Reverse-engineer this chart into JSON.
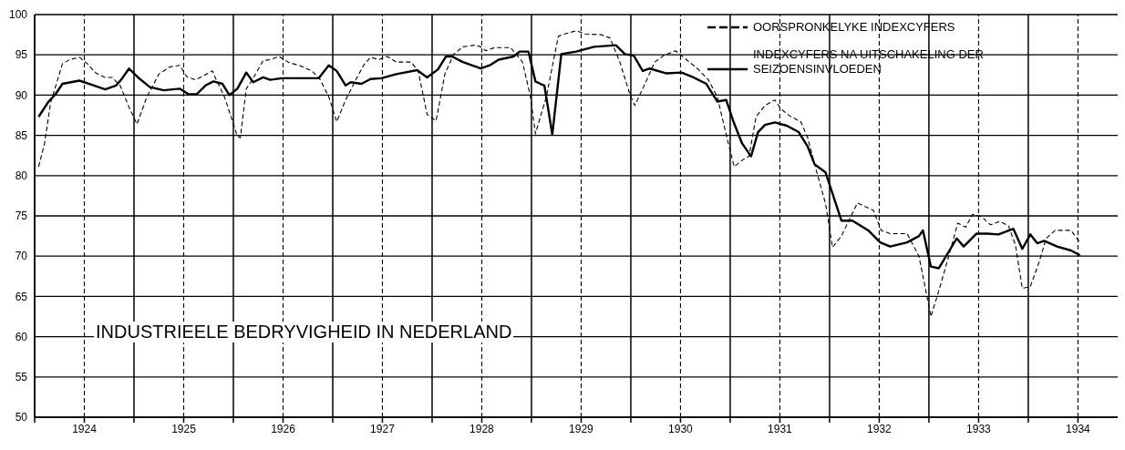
{
  "chart_data": {
    "type": "line",
    "title": "INDUSTRIEELE BEDRYVIGHEID IN NEDERLAND",
    "xlim": [
      1923.5,
      1934.4
    ],
    "xticks": [
      {
        "value": 1923.5,
        "label": null
      },
      {
        "value": 1924,
        "label": "1924"
      },
      {
        "value": 1924.5,
        "label": null
      },
      {
        "value": 1925,
        "label": "1925"
      },
      {
        "value": 1925.5,
        "label": null
      },
      {
        "value": 1926,
        "label": "1926"
      },
      {
        "value": 1926.5,
        "label": null
      },
      {
        "value": 1927,
        "label": "1927"
      },
      {
        "value": 1927.5,
        "label": null
      },
      {
        "value": 1928,
        "label": "1928"
      },
      {
        "value": 1928.5,
        "label": null
      },
      {
        "value": 1929,
        "label": "1929"
      },
      {
        "value": 1929.5,
        "label": null
      },
      {
        "value": 1930,
        "label": "1930"
      },
      {
        "value": 1930.5,
        "label": null
      },
      {
        "value": 1931,
        "label": "1931"
      },
      {
        "value": 1931.5,
        "label": null
      },
      {
        "value": 1932,
        "label": "1932"
      },
      {
        "value": 1932.5,
        "label": null
      },
      {
        "value": 1933,
        "label": "1933"
      },
      {
        "value": 1933.5,
        "label": null
      },
      {
        "value": 1934,
        "label": "1934"
      }
    ],
    "ylim": [
      50,
      100
    ],
    "yticks": [
      50,
      55,
      60,
      65,
      70,
      75,
      80,
      85,
      90,
      95,
      100
    ],
    "grid": true,
    "legend": "top right",
    "marker": "none",
    "series": [
      {
        "name": "OORSPRONKELYKE INDEXCYFERS",
        "color": "#000000",
        "line_style": "dashed",
        "x": [
          1923.54,
          1923.6,
          1923.66,
          1923.78,
          1923.85,
          1923.95,
          1924.03,
          1924.12,
          1924.21,
          1924.28,
          1924.36,
          1924.45,
          1924.53,
          1924.63,
          1924.75,
          1924.86,
          1924.96,
          1925.03,
          1925.12,
          1925.29,
          1925.32,
          1925.41,
          1925.45,
          1925.54,
          1925.57,
          1925.63,
          1925.69,
          1925.8,
          1925.87,
          1925.96,
          1926.05,
          1926.18,
          1926.29,
          1926.37,
          1926.46,
          1926.54,
          1926.63,
          1926.72,
          1926.81,
          1926.88,
          1926.96,
          1927.05,
          1927.14,
          1927.29,
          1927.36,
          1927.45,
          1927.54,
          1927.63,
          1927.72,
          1927.81,
          1927.93,
          1927.99,
          1928.04,
          1928.13,
          1928.29,
          1928.41,
          1928.49,
          1928.54,
          1928.65,
          1928.77,
          1928.81,
          1928.95,
          1929.04,
          1929.2,
          1929.29,
          1929.39,
          1929.49,
          1929.54,
          1929.65,
          1929.74,
          1929.83,
          1929.95,
          1930.04,
          1930.17,
          1930.28,
          1930.37,
          1930.46,
          1930.54,
          1930.63,
          1930.69,
          1930.76,
          1930.85,
          1930.95,
          1931.01,
          1931.1,
          1931.21,
          1931.28,
          1931.35,
          1931.46,
          1931.53,
          1931.62,
          1931.69,
          1931.78,
          1931.94,
          1932.02,
          1932.11,
          1932.28,
          1932.4,
          1932.52,
          1932.6,
          1932.7,
          1932.79,
          1932.87,
          1932.94,
          1933.03,
          1933.12,
          1933.21,
          1933.3,
          1933.37,
          1933.44,
          1933.52,
          1933.61,
          1933.68,
          1933.77,
          1933.93,
          1934.02
        ],
        "values": [
          81.1,
          84.0,
          89.0,
          93.9,
          94.4,
          94.7,
          93.9,
          92.7,
          92.2,
          92.2,
          91.2,
          88.5,
          86.4,
          89.8,
          92.6,
          93.5,
          93.7,
          92.3,
          91.9,
          93.0,
          92.1,
          89.8,
          88.3,
          84.9,
          84.7,
          90.8,
          91.9,
          94.3,
          94.4,
          94.8,
          94.1,
          93.6,
          93.0,
          92.0,
          89.8,
          86.7,
          89.4,
          91.6,
          93.7,
          94.7,
          94.4,
          94.8,
          94.1,
          94.1,
          93.0,
          87.6,
          86.8,
          92.7,
          95.1,
          96.0,
          96.2,
          96.0,
          95.5,
          95.9,
          95.9,
          94.1,
          89.8,
          85.2,
          89.8,
          97.3,
          97.5,
          98.0,
          97.6,
          97.5,
          97.1,
          94.1,
          90.1,
          88.7,
          91.6,
          94.1,
          94.9,
          95.5,
          94.6,
          93.3,
          91.9,
          89.8,
          85.1,
          81.1,
          82.0,
          82.4,
          87.3,
          88.7,
          89.4,
          88.3,
          87.4,
          86.7,
          84.7,
          81.4,
          76.5,
          71.1,
          72.5,
          74.3,
          76.6,
          75.7,
          73.2,
          72.8,
          72.8,
          70.0,
          62.5,
          65.7,
          70.0,
          74.1,
          73.6,
          75.2,
          74.9,
          73.9,
          74.3,
          73.8,
          71.4,
          66.0,
          66.2,
          69.3,
          72.2,
          73.2,
          73.2,
          71.7
        ]
      },
      {
        "name": "INDEXCYFERS NA UITSCHAKELING DER SEIZOENSINVLOEDEN",
        "color": "#000000",
        "line_style": "solid",
        "x": [
          1923.54,
          1923.64,
          1923.71,
          1923.78,
          1923.95,
          1924.05,
          1924.21,
          1924.32,
          1924.37,
          1924.45,
          1924.54,
          1924.66,
          1924.8,
          1924.96,
          1925.05,
          1925.13,
          1925.22,
          1925.3,
          1925.39,
          1925.46,
          1925.54,
          1925.63,
          1925.7,
          1925.8,
          1925.87,
          1925.99,
          1926.23,
          1926.36,
          1926.46,
          1926.54,
          1926.63,
          1926.68,
          1926.79,
          1926.88,
          1926.99,
          1927.14,
          1927.35,
          1927.45,
          1927.56,
          1927.64,
          1927.7,
          1927.81,
          1927.99,
          1928.08,
          1928.17,
          1928.32,
          1928.38,
          1928.47,
          1928.54,
          1928.59,
          1928.63,
          1928.71,
          1928.8,
          1928.95,
          1929.13,
          1929.35,
          1929.44,
          1929.53,
          1929.62,
          1929.69,
          1929.86,
          1930.01,
          1930.13,
          1930.26,
          1930.37,
          1930.46,
          1930.53,
          1930.62,
          1930.71,
          1930.78,
          1930.85,
          1930.95,
          1931.07,
          1931.19,
          1931.28,
          1931.35,
          1931.46,
          1931.62,
          1931.73,
          1931.89,
          1932.01,
          1932.11,
          1932.28,
          1932.4,
          1932.44,
          1932.52,
          1932.6,
          1932.78,
          1932.85,
          1932.98,
          1933.09,
          1933.2,
          1933.35,
          1933.44,
          1933.52,
          1933.59,
          1933.66,
          1933.79,
          1933.93,
          1934.02
        ],
        "values": [
          87.3,
          89.2,
          90.1,
          91.4,
          91.8,
          91.4,
          90.7,
          91.2,
          91.9,
          93.3,
          92.2,
          91.0,
          90.6,
          90.8,
          90.1,
          90.1,
          91.2,
          91.7,
          91.4,
          90.0,
          90.8,
          92.8,
          91.6,
          92.2,
          91.9,
          92.1,
          92.1,
          92.1,
          93.7,
          93.0,
          91.2,
          91.6,
          91.4,
          92.0,
          92.1,
          92.6,
          93.1,
          92.2,
          93.2,
          94.8,
          94.8,
          94.1,
          93.3,
          93.7,
          94.4,
          94.8,
          95.4,
          95.4,
          91.7,
          91.4,
          91.2,
          85.1,
          95.1,
          95.4,
          96.0,
          96.2,
          95.1,
          94.9,
          93.0,
          93.3,
          92.7,
          92.8,
          92.2,
          91.4,
          89.2,
          89.4,
          86.8,
          84.0,
          82.4,
          85.4,
          86.3,
          86.6,
          86.2,
          85.4,
          83.6,
          81.4,
          80.4,
          74.4,
          74.4,
          73.2,
          71.7,
          71.2,
          71.7,
          72.5,
          73.2,
          68.7,
          68.5,
          72.2,
          71.2,
          72.8,
          72.8,
          72.7,
          73.4,
          70.9,
          72.7,
          71.6,
          71.9,
          71.2,
          70.7,
          70.1
        ]
      }
    ]
  }
}
